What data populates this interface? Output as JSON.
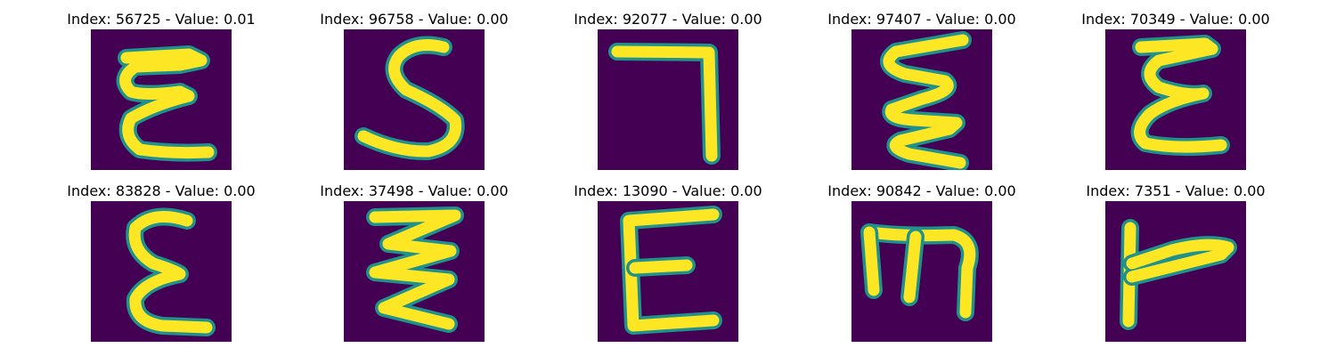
{
  "colors": {
    "background": "#440154",
    "stroke_edge": "#21918c",
    "stroke_core": "#fde725"
  },
  "panels": [
    {
      "title": "Index: 56725 - Value: 0.01",
      "glyph": "E-like"
    },
    {
      "title": "Index: 96758 - Value: 0.00",
      "glyph": "S-like"
    },
    {
      "title": "Index: 92077 - Value: 0.00",
      "glyph": "7-like"
    },
    {
      "title": "Index: 97407 - Value: 0.00",
      "glyph": "zigzag-E"
    },
    {
      "title": "Index: 70349 - Value: 0.00",
      "glyph": "E-like"
    },
    {
      "title": "Index: 83828 - Value: 0.00",
      "glyph": "epsilon"
    },
    {
      "title": "Index: 37498 - Value: 0.00",
      "glyph": "zigzag-Z"
    },
    {
      "title": "Index: 13090 - Value: 0.00",
      "glyph": "E-like"
    },
    {
      "title": "Index: 90842 - Value: 0.00",
      "glyph": "m-like"
    },
    {
      "title": "Index: 7351 - Value: 0.00",
      "glyph": "T-rotated"
    }
  ]
}
